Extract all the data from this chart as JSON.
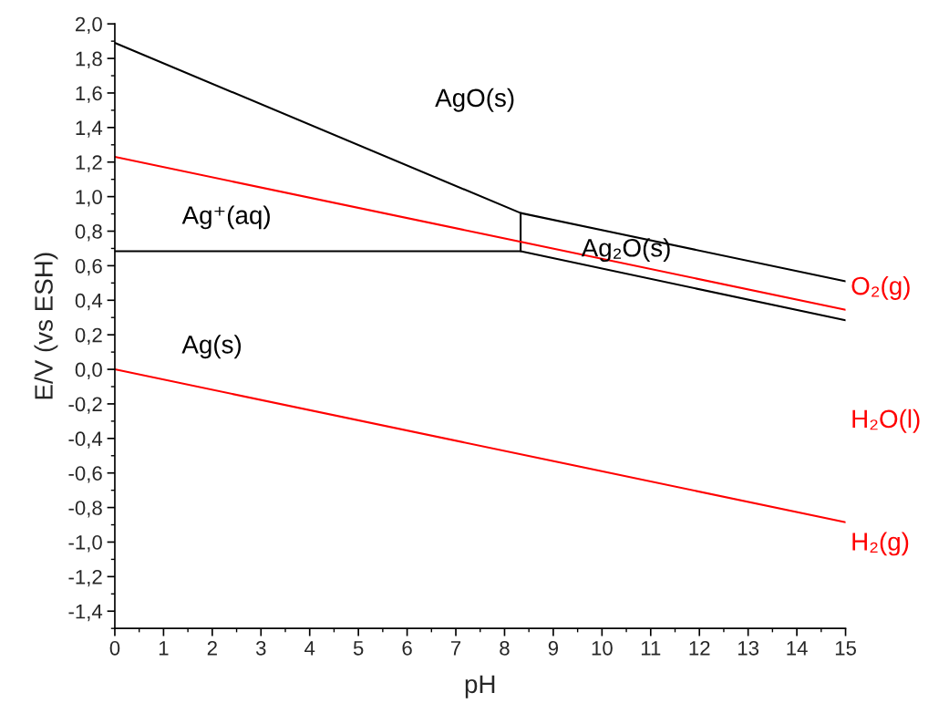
{
  "chart_data": {
    "type": "line",
    "xlabel": "pH",
    "ylabel": "E/V (vs ESH)",
    "xlim": [
      0,
      15
    ],
    "ylim": [
      -1.5,
      2.0
    ],
    "xticks": [
      0,
      1,
      2,
      3,
      4,
      5,
      6,
      7,
      8,
      9,
      10,
      11,
      12,
      13,
      14,
      15
    ],
    "yticks": [
      {
        "value": -1.4,
        "label": "-1,4"
      },
      {
        "value": -1.2,
        "label": "-1,2"
      },
      {
        "value": -1.0,
        "label": "-1,0"
      },
      {
        "value": -0.8,
        "label": "-0,8"
      },
      {
        "value": -0.6,
        "label": "-0,6"
      },
      {
        "value": -0.4,
        "label": "-0,4"
      },
      {
        "value": -0.2,
        "label": "-0,2"
      },
      {
        "value": 0.0,
        "label": "0,0"
      },
      {
        "value": 0.2,
        "label": "0,2"
      },
      {
        "value": 0.4,
        "label": "0,4"
      },
      {
        "value": 0.6,
        "label": "0,6"
      },
      {
        "value": 0.8,
        "label": "0,8"
      },
      {
        "value": 1.0,
        "label": "1,0"
      },
      {
        "value": 1.2,
        "label": "1,2"
      },
      {
        "value": 1.4,
        "label": "1,4"
      },
      {
        "value": 1.6,
        "label": "1,6"
      },
      {
        "value": 1.8,
        "label": "1,8"
      },
      {
        "value": 2.0,
        "label": "2,0"
      }
    ],
    "grid": false,
    "legend": false,
    "marker": "none",
    "line_style": "solid",
    "series": [
      {
        "color": "#000000",
        "x": [
          0,
          8.33,
          15
        ],
        "values": [
          1.89,
          0.905,
          0.51
        ]
      },
      {
        "color": "#000000",
        "x": [
          0,
          8.33,
          15
        ],
        "values": [
          0.684,
          0.684,
          0.284
        ]
      },
      {
        "color": "#000000",
        "x": [
          8.33,
          8.33
        ],
        "values": [
          0.684,
          0.905
        ]
      },
      {
        "color": "#ff0000",
        "x": [
          0,
          15
        ],
        "values": [
          1.23,
          0.345
        ]
      },
      {
        "color": "#ff0000",
        "x": [
          0,
          15
        ],
        "values": [
          0.0,
          -0.885
        ]
      }
    ],
    "annotations": [
      "AgO(s)",
      "Ag⁺(aq)",
      "Ag₂O(s)",
      "Ag(s)",
      "O₂(g)",
      "H₂O(l)",
      "H₂(g)"
    ]
  }
}
